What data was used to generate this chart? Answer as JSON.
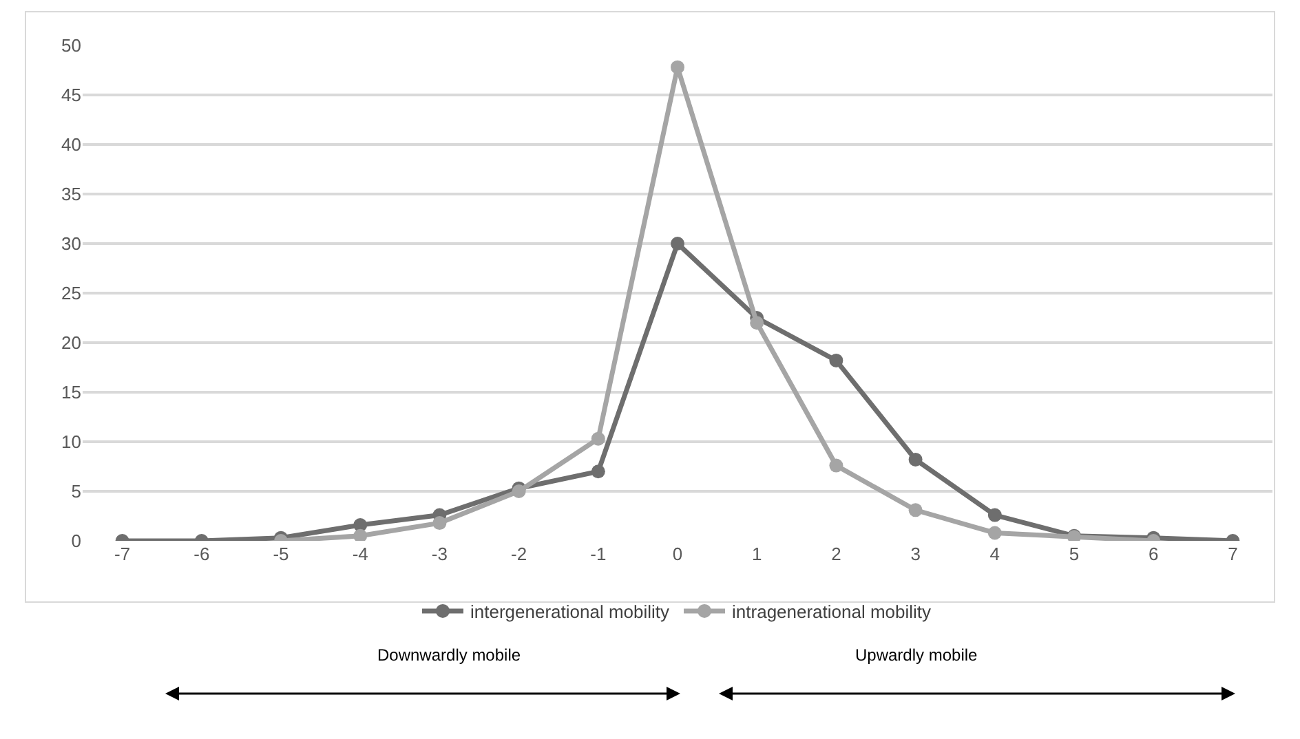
{
  "chart_data": {
    "type": "line",
    "x": [
      -7,
      -6,
      -5,
      -4,
      -3,
      -2,
      -1,
      0,
      1,
      2,
      3,
      4,
      5,
      6,
      7
    ],
    "series": [
      {
        "name": "intergenerational mobility",
        "color": "#6e6e6e",
        "values": [
          0,
          0,
          0.3,
          1.6,
          2.6,
          5.3,
          7,
          30,
          22.5,
          18.2,
          8.2,
          2.6,
          0.5,
          0.3,
          0
        ]
      },
      {
        "name": "intragenerational mobility",
        "color": "#a5a5a5",
        "values": [
          null,
          null,
          0,
          0.5,
          1.8,
          5,
          10.3,
          47.8,
          22,
          7.6,
          3.1,
          0.8,
          0.4,
          0,
          null
        ]
      }
    ],
    "xlim": [
      -7.5,
      7.5
    ],
    "xticks": [
      -7,
      -6,
      -5,
      -4,
      -3,
      -2,
      -1,
      0,
      1,
      2,
      3,
      4,
      5,
      6,
      7
    ],
    "ylim": [
      0,
      50
    ],
    "yticks": [
      0,
      5,
      10,
      15,
      20,
      25,
      30,
      35,
      40,
      45,
      50
    ],
    "grid": "y",
    "legend": "bottom",
    "marker": "circle",
    "line_style": "solid",
    "annotations": [
      "Downwardly mobile",
      "Upwardly mobile"
    ]
  }
}
